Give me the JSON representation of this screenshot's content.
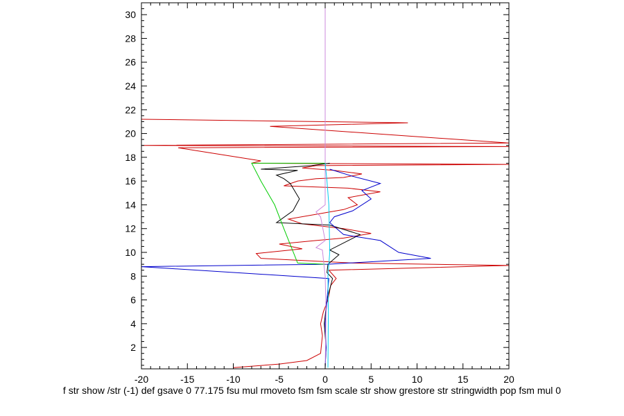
{
  "chart_data": {
    "type": "line",
    "title": "",
    "xlabel": "f str show /str (-1) def gsave 0 77.175 fsu mul rmoveto fsm fsm scale str show grestore str stringwidth pop fsm mul 0",
    "ylabel": "",
    "xlim": [
      -20,
      20
    ],
    "ylim": [
      0.2,
      31
    ],
    "x_ticks": [
      -20,
      -15,
      -10,
      -5,
      0,
      5,
      10,
      15,
      20
    ],
    "y_ticks": [
      2,
      4,
      6,
      8,
      10,
      12,
      14,
      16,
      18,
      20,
      22,
      24,
      26,
      28,
      30
    ],
    "grid": false,
    "legend": "none",
    "series": [
      {
        "color": "#cc0000",
        "points": [
          [
            -10,
            0.3
          ],
          [
            -5,
            0.6
          ],
          [
            -2,
            0.9
          ],
          [
            -0.5,
            1.5
          ],
          [
            -0.3,
            3
          ],
          [
            -0.5,
            4
          ],
          [
            -0.2,
            5
          ],
          [
            0.3,
            6
          ],
          [
            0.6,
            7.2
          ],
          [
            1.2,
            7.8
          ],
          [
            0.4,
            8.5
          ],
          [
            20,
            8.9
          ],
          [
            3,
            9.1
          ],
          [
            -7,
            9.5
          ],
          [
            -7.5,
            9.9
          ],
          [
            -2.5,
            10.3
          ],
          [
            -5,
            10.7
          ],
          [
            -1,
            11
          ],
          [
            2,
            11.2
          ],
          [
            5,
            11.6
          ],
          [
            2,
            12
          ],
          [
            -2.5,
            12.4
          ],
          [
            -4,
            12.8
          ],
          [
            -1,
            13.2
          ],
          [
            2,
            13.6
          ],
          [
            3.5,
            14
          ],
          [
            2.5,
            14.6
          ],
          [
            6,
            15.1
          ],
          [
            2.5,
            15.4
          ],
          [
            -4.5,
            15.6
          ],
          [
            -3,
            16
          ],
          [
            -1,
            16.2
          ],
          [
            2,
            16.3
          ],
          [
            4,
            16.6
          ],
          [
            1,
            16.9
          ],
          [
            -2.5,
            17.1
          ],
          [
            -1,
            17.3
          ],
          [
            20,
            17.4
          ],
          [
            -8,
            17.5
          ],
          [
            -7,
            17.7
          ],
          [
            -16,
            18.8
          ],
          [
            20,
            18.9
          ],
          [
            -20,
            19
          ],
          [
            20,
            19.2
          ],
          [
            -6,
            20.6
          ],
          [
            9,
            20.9
          ],
          [
            -20,
            21.2
          ]
        ]
      },
      {
        "color": "#000000",
        "points": [
          [
            0,
            0.3
          ],
          [
            0.1,
            2
          ],
          [
            -0.1,
            4
          ],
          [
            0.2,
            6
          ],
          [
            0.8,
            7.8
          ],
          [
            0.2,
            8.3
          ],
          [
            0.3,
            9
          ],
          [
            1.5,
            9.8
          ],
          [
            0.5,
            10.2
          ],
          [
            3.8,
            11.5
          ],
          [
            0.5,
            12.3
          ],
          [
            -5.3,
            12.5
          ],
          [
            -3.5,
            13.5
          ],
          [
            -2.8,
            14.5
          ],
          [
            -3.8,
            15.8
          ],
          [
            -4.5,
            16.2
          ],
          [
            -5.3,
            16.5
          ],
          [
            -3,
            16.9
          ],
          [
            -7,
            17
          ],
          [
            -1.5,
            17.3
          ],
          [
            0.5,
            17.5
          ]
        ]
      },
      {
        "color": "#0000cc",
        "points": [
          [
            0,
            0.3
          ],
          [
            0.1,
            2
          ],
          [
            0,
            4
          ],
          [
            0.2,
            6
          ],
          [
            0.4,
            7.8
          ],
          [
            -20,
            8.8
          ],
          [
            0.3,
            9
          ],
          [
            11.5,
            9.5
          ],
          [
            8,
            10
          ],
          [
            6,
            11
          ],
          [
            2,
            11.5
          ],
          [
            0.5,
            12.5
          ],
          [
            1,
            13
          ],
          [
            3,
            13.5
          ],
          [
            5,
            14.5
          ],
          [
            4,
            15.2
          ],
          [
            6,
            15.8
          ],
          [
            3,
            16.4
          ],
          [
            0.5,
            17
          ]
        ]
      },
      {
        "color": "#00cc00",
        "points": [
          [
            0,
            9
          ],
          [
            -3,
            9.1
          ],
          [
            -4.5,
            12
          ],
          [
            -5.5,
            14
          ],
          [
            -7,
            16
          ],
          [
            -8,
            17.5
          ],
          [
            0,
            17.5
          ]
        ]
      },
      {
        "color": "#cc88dd",
        "points": [
          [
            0,
            0.2
          ],
          [
            0.1,
            5
          ],
          [
            0,
            8
          ],
          [
            -0.3,
            10.2
          ],
          [
            -1,
            10.4
          ],
          [
            0,
            11
          ],
          [
            -0.5,
            13
          ],
          [
            -1,
            13.4
          ],
          [
            0,
            14
          ],
          [
            0,
            31
          ]
        ]
      },
      {
        "color": "#00ccee",
        "points": [
          [
            0.3,
            0.3
          ],
          [
            0.35,
            5
          ],
          [
            0.3,
            8
          ],
          [
            0.5,
            10
          ],
          [
            0.4,
            14
          ],
          [
            0.2,
            16
          ],
          [
            0,
            17.5
          ]
        ]
      }
    ]
  }
}
